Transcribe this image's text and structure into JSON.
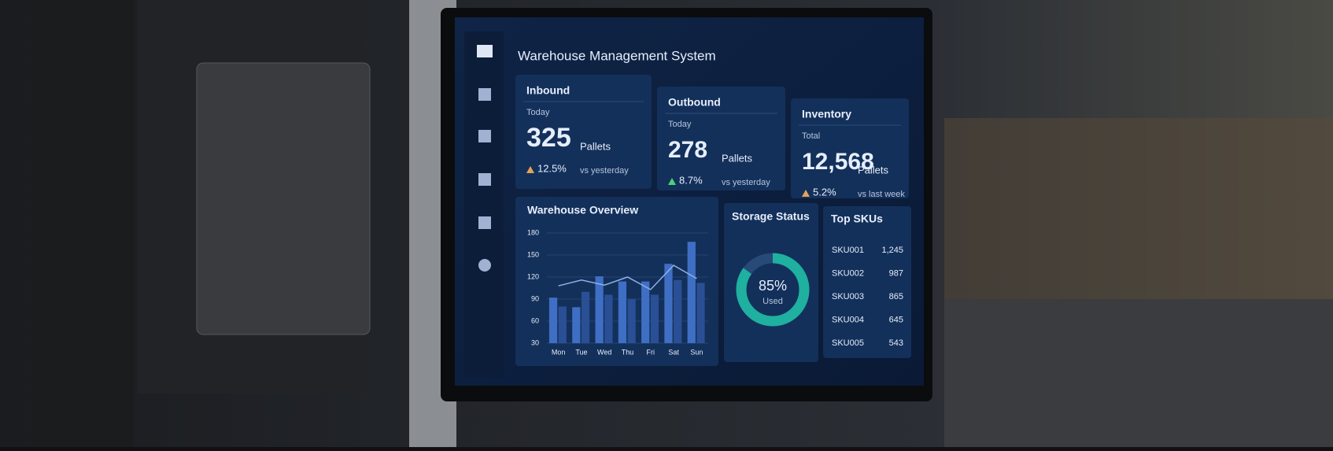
{
  "header": {
    "title": "Warehouse Management System"
  },
  "cards": [
    {
      "title": "Inbound",
      "period": "Today",
      "value": "325",
      "unit": "Pallets",
      "change": "12.5%",
      "compare": "vs yesterday"
    },
    {
      "title": "Outbound",
      "period": "Today",
      "value": "278",
      "unit": "Pallets",
      "change": "8.7%",
      "compare": "vs yesterday"
    },
    {
      "title": "Inventory",
      "period": "Total",
      "value": "12,568",
      "unit": "Pallets",
      "change": "5.2%",
      "compare": "vs last week"
    }
  ],
  "chart_data": {
    "type": "bar",
    "title": "Warehouse Overview",
    "categories": [
      "Mon",
      "Tue",
      "Wed",
      "Thu",
      "Fri",
      "Sat",
      "Sun"
    ],
    "series": [
      {
        "color": "#3f6fc4",
        "values": [
          92,
          79,
          121,
          114,
          114,
          138,
          168
        ]
      },
      {
        "color": "#2a4f94",
        "values": [
          80,
          100,
          96,
          90,
          96,
          116,
          112
        ]
      },
      {
        "type": "line",
        "color": "#8fb0e8",
        "values": [
          108,
          116,
          109,
          120,
          103,
          136,
          118
        ]
      }
    ],
    "ylim": [
      30,
      180
    ],
    "yticks": [
      30,
      60,
      90,
      120,
      150,
      180
    ],
    "grid": true
  },
  "storage": {
    "title": "Storage Status",
    "chart_data": {
      "type": "donut",
      "value": 85,
      "value_label": "85%",
      "max": 100,
      "label": "Used",
      "color": "#1fb0a0"
    }
  },
  "top_skus": {
    "title": "Top SKUs",
    "rows": [
      [
        "SKU001",
        "1,245"
      ],
      [
        "SKU002",
        "987"
      ],
      [
        "SKU003",
        "865"
      ],
      [
        "SKU004",
        "645"
      ],
      [
        "SKU005",
        "543"
      ]
    ]
  }
}
